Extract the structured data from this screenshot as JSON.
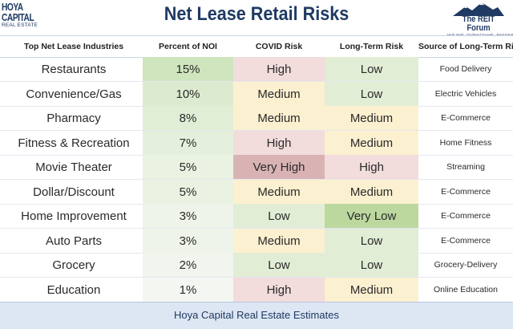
{
  "header": {
    "logo_left_line1": "HOYA CAPITAL",
    "logo_left_line2": "REAL ESTATE",
    "title": "Net Lease Retail Risks",
    "logo_right_name": "The REIT Forum",
    "logo_right_tagline": "High Yield · Dividend Growth · Real Estate"
  },
  "columns": {
    "industry": "Top Net Lease Industries",
    "noi": "Percent of NOI",
    "covid": "COVID Risk",
    "longterm": "Long-Term Risk",
    "source": "Source of Long-Term Risk"
  },
  "colors": {
    "very_high": "#d9b3b3",
    "high": "#f2dcdc",
    "medium": "#fbf0d0",
    "low": "#e2edd6",
    "very_low": "#bcd89f",
    "noi_15": "#cfe5bd",
    "noi_10": "#dcebcf",
    "noi_8": "#e1eed6",
    "noi_7": "#e5f0dc",
    "noi_5": "#eaf2e2",
    "noi_3": "#eef4e9",
    "noi_2": "#f1f5ee",
    "noi_1": "#f4f6f2",
    "footer_bg": "#dde6f3",
    "title": "#1f3a63"
  },
  "rows": [
    {
      "industry": "Restaurants",
      "noi": "15%",
      "covid": "High",
      "longterm": "Low",
      "source": "Food Delivery"
    },
    {
      "industry": "Convenience/Gas",
      "noi": "10%",
      "covid": "Medium",
      "longterm": "Low",
      "source": "Electric Vehicles"
    },
    {
      "industry": "Pharmacy",
      "noi": "8%",
      "covid": "Medium",
      "longterm": "Medium",
      "source": "E-Commerce"
    },
    {
      "industry": "Fitness & Recreation",
      "noi": "7%",
      "covid": "High",
      "longterm": "Medium",
      "source": "Home Fitness"
    },
    {
      "industry": "Movie Theater",
      "noi": "5%",
      "covid": "Very High",
      "longterm": "High",
      "source": "Streaming"
    },
    {
      "industry": "Dollar/Discount",
      "noi": "5%",
      "covid": "Medium",
      "longterm": "Medium",
      "source": "E-Commerce"
    },
    {
      "industry": "Home Improvement",
      "noi": "3%",
      "covid": "Low",
      "longterm": "Very Low",
      "source": "E-Commerce"
    },
    {
      "industry": "Auto Parts",
      "noi": "3%",
      "covid": "Medium",
      "longterm": "Low",
      "source": "E-Commerce"
    },
    {
      "industry": "Grocery",
      "noi": "2%",
      "covid": "Low",
      "longterm": "Low",
      "source": "Grocery-Delivery"
    },
    {
      "industry": "Education",
      "noi": "1%",
      "covid": "High",
      "longterm": "Medium",
      "source": "Online Education"
    }
  ],
  "footer": "Hoya Capital Real Estate Estimates"
}
